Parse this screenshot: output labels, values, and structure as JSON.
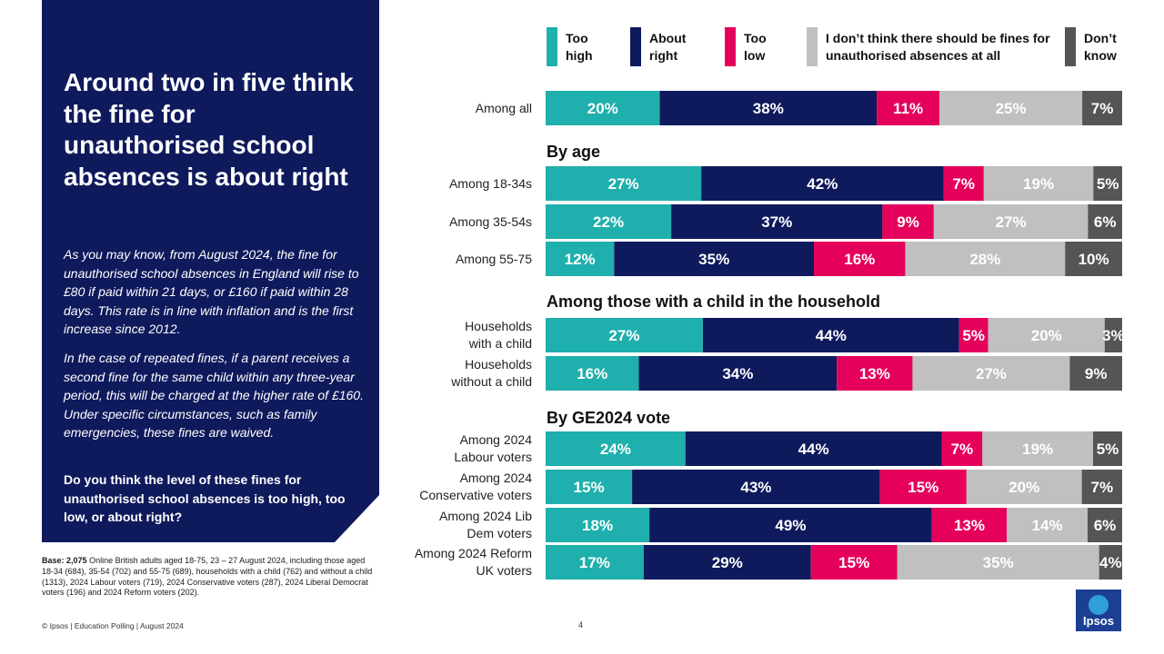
{
  "panel": {
    "headline": "Around two in five think the fine for unauthorised school absences is about right",
    "paragraph1": "As you may know, from August 2024, the fine for unauthorised school absences in England will rise to £80 if paid within 21 days, or £160 if paid within 28 days. This rate is in line with inflation and is the first increase since 2012.",
    "paragraph2": "In the case of repeated fines, if a parent receives a second fine for the same child within any three-year period, this will be charged at the higher rate of £160. Under specific circumstances, such as family emergencies, these fines are waived.",
    "question": "Do you think the level of these fines for unauthorised school absences is too high, too low, or about right?"
  },
  "base_note": {
    "label": "Base: 2,075",
    "text": "Online British adults aged 18-75, 23 – 27 August 2024, including those aged 18-34 (684), 35-54 (702) and 55-75 (689), households with a child (762) and without a child (1313), 2024 Labour voters (719), 2024 Conservative voters (287), 2024 Liberal Democrat voters (196) and 2024 Reform voters (202)."
  },
  "footer": {
    "credit": "© Ipsos | Education Polling | August 2024",
    "page_number": "4"
  },
  "logo": {
    "text": "Ipsos"
  },
  "colors": {
    "too_high": "#1fafac",
    "about_right": "#0f1a5c",
    "too_low": "#e5005c",
    "no_fines": "#c0c0c0",
    "dont_know": "#555555"
  },
  "chart_data": {
    "type": "bar",
    "orientation": "horizontal",
    "stacked": true,
    "title": "Around two in five think the fine for unauthorised school absences is about right",
    "xlim": [
      0,
      100
    ],
    "legend": [
      {
        "key": "too_high",
        "label": "Too high"
      },
      {
        "key": "about_right",
        "label": "About right"
      },
      {
        "key": "too_low",
        "label": "Too low"
      },
      {
        "key": "no_fines",
        "label": "I don’t think there should be fines for unauthorised absences at all"
      },
      {
        "key": "dont_know",
        "label": "Don’t know"
      }
    ],
    "sections": [
      {
        "title": "",
        "rows": [
          {
            "label": "Among all",
            "values": [
              20,
              38,
              11,
              25,
              7
            ]
          }
        ]
      },
      {
        "title": "By age",
        "rows": [
          {
            "label": "Among 18-34s",
            "values": [
              27,
              42,
              7,
              19,
              5
            ]
          },
          {
            "label": "Among 35-54s",
            "values": [
              22,
              37,
              9,
              27,
              6
            ]
          },
          {
            "label": "Among 55-75",
            "values": [
              12,
              35,
              16,
              28,
              10
            ]
          }
        ]
      },
      {
        "title": "Among those with a child in the household",
        "rows": [
          {
            "label": "Households with a child",
            "values": [
              27,
              44,
              5,
              20,
              3
            ]
          },
          {
            "label": "Households without a child",
            "values": [
              16,
              34,
              13,
              27,
              9
            ]
          }
        ]
      },
      {
        "title": "By GE2024 vote",
        "rows": [
          {
            "label": "Among 2024 Labour voters",
            "values": [
              24,
              44,
              7,
              19,
              5
            ]
          },
          {
            "label": "Among 2024 Conservative voters",
            "values": [
              15,
              43,
              15,
              20,
              7
            ]
          },
          {
            "label": "Among 2024 Lib Dem voters",
            "values": [
              18,
              49,
              13,
              14,
              6
            ]
          },
          {
            "label": "Among 2024 Reform UK voters",
            "values": [
              17,
              29,
              15,
              35,
              4
            ]
          }
        ]
      }
    ]
  }
}
